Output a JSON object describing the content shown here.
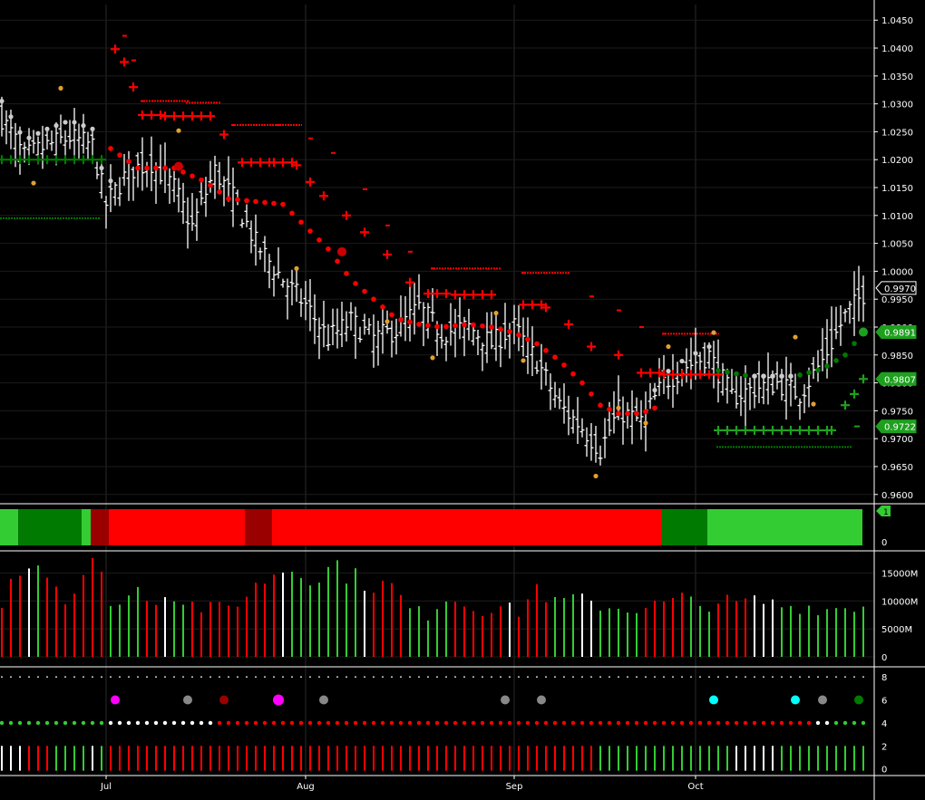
{
  "colors": {
    "background": "#000000",
    "bar": "#ffffff",
    "bull_dark": "#007a00",
    "bull_light": "#33cc33",
    "bear": "#ff0000",
    "bear_dark": "#9b0000",
    "neutral": "#cccccc",
    "orange_dot": "#e0a030",
    "magenta": "#ff00ff",
    "cyan": "#00ffff",
    "grey": "#888888"
  },
  "chart_data": [
    {
      "type": "ohlc",
      "panel": "price",
      "yticks": [
        "1.0450",
        "1.0400",
        "1.0350",
        "1.0300",
        "1.0250",
        "1.0200",
        "1.0150",
        "1.0100",
        "1.0050",
        "1.0000",
        "0.9950",
        "0.9900",
        "0.9850",
        "0.9800",
        "0.9750",
        "0.9700",
        "0.9650",
        "0.9600"
      ],
      "ylim": [
        0.9585,
        1.0478
      ],
      "xticks": [
        "Jul",
        "Aug",
        "Sep",
        "Oct"
      ],
      "last_price": "0.9970",
      "flags": [
        {
          "label": "0.9970",
          "value": 0.997,
          "color": "#ffffff"
        },
        {
          "label": "0.9891",
          "value": 0.9891,
          "color": "#1ea01e"
        },
        {
          "label": "0.9807",
          "value": 0.9807,
          "color": "#1ea01e"
        },
        {
          "label": "0.9722",
          "value": 0.9722,
          "color": "#1ea01e"
        }
      ],
      "close_anchors": [
        [
          0,
          1.0275
        ],
        [
          5,
          1.0205
        ],
        [
          10,
          1.0225
        ],
        [
          15,
          1.024
        ],
        [
          20,
          1.0225
        ],
        [
          23,
          1.012
        ],
        [
          28,
          1.018
        ],
        [
          33,
          1.0195
        ],
        [
          38,
          1.015
        ],
        [
          42,
          1.008
        ],
        [
          47,
          1.018
        ],
        [
          52,
          1.012
        ],
        [
          56,
          1.005
        ],
        [
          62,
          0.9985
        ],
        [
          67,
          0.994
        ],
        [
          72,
          0.988
        ],
        [
          77,
          0.991
        ],
        [
          82,
          0.988
        ],
        [
          87,
          0.9895
        ],
        [
          92,
          0.9935
        ],
        [
          97,
          0.989
        ],
        [
          103,
          0.99
        ],
        [
          108,
          0.987
        ],
        [
          113,
          0.99
        ],
        [
          118,
          0.984
        ],
        [
          123,
          0.976
        ],
        [
          128,
          0.972
        ],
        [
          132,
          0.968
        ],
        [
          136,
          0.975
        ],
        [
          141,
          0.973
        ],
        [
          146,
          0.98
        ],
        [
          151,
          0.983
        ],
        [
          156,
          0.985
        ],
        [
          161,
          0.9775
        ],
        [
          166,
          0.979
        ],
        [
          171,
          0.98
        ],
        [
          176,
          0.978
        ],
        [
          181,
          0.984
        ],
        [
          186,
          0.992
        ],
        [
          191,
          0.997
        ]
      ],
      "red_dots_anchors": [
        [
          24,
          1.022
        ],
        [
          30,
          1.0185
        ],
        [
          38,
          1.0185
        ],
        [
          45,
          1.016
        ],
        [
          50,
          1.013
        ],
        [
          56,
          1.0125
        ],
        [
          62,
          1.012
        ],
        [
          67,
          1.008
        ],
        [
          72,
          1.004
        ],
        [
          77,
          0.9985
        ],
        [
          82,
          0.995
        ],
        [
          87,
          0.9915
        ],
        [
          92,
          0.9905
        ],
        [
          97,
          0.99
        ],
        [
          103,
          0.9905
        ],
        [
          108,
          0.99
        ],
        [
          113,
          0.989
        ],
        [
          118,
          0.987
        ],
        [
          123,
          0.984
        ],
        [
          128,
          0.98
        ],
        [
          132,
          0.976
        ],
        [
          136,
          0.9745
        ],
        [
          141,
          0.9745
        ],
        [
          144,
          0.9755
        ]
      ],
      "red_plus_anchors": [
        [
          25,
          1.0398
        ],
        [
          27,
          1.0375
        ],
        [
          29,
          1.033
        ],
        [
          31,
          1.028
        ],
        [
          36,
          1.0278
        ],
        [
          42,
          1.0278
        ],
        [
          46,
          1.0278
        ],
        [
          49,
          1.0245
        ],
        [
          53,
          1.0195
        ],
        [
          60,
          1.0195
        ],
        [
          65,
          1.019
        ],
        [
          68,
          1.016
        ],
        [
          71,
          1.0135
        ],
        [
          76,
          1.01
        ],
        [
          80,
          1.007
        ],
        [
          85,
          1.003
        ],
        [
          90,
          0.998
        ],
        [
          94,
          0.996
        ],
        [
          100,
          0.9958
        ],
        [
          108,
          0.9958
        ],
        [
          115,
          0.994
        ],
        [
          120,
          0.9935
        ],
        [
          125,
          0.9905
        ],
        [
          130,
          0.9865
        ],
        [
          136,
          0.985
        ],
        [
          141,
          0.9818
        ],
        [
          146,
          0.9815
        ],
        [
          152,
          0.9815
        ],
        [
          158,
          0.9815
        ]
      ],
      "red_dash_anchors": [
        [
          25,
          1.0438
        ],
        [
          27,
          1.0422
        ],
        [
          29,
          1.0378
        ],
        [
          31,
          1.0305
        ],
        [
          41,
          1.0302
        ],
        [
          48,
          1.0302
        ],
        [
          51,
          1.0262
        ],
        [
          61,
          1.0262
        ],
        [
          66,
          1.0262
        ],
        [
          68,
          1.0238
        ],
        [
          73,
          1.0212
        ],
        [
          80,
          1.0147
        ],
        [
          85,
          1.0082
        ],
        [
          90,
          1.0035
        ],
        [
          95,
          1.0005
        ],
        [
          110,
          1.0005
        ],
        [
          115,
          0.9997
        ],
        [
          125,
          0.9997
        ],
        [
          130,
          0.9955
        ],
        [
          136,
          0.993
        ],
        [
          141,
          0.99
        ],
        [
          146,
          0.9888
        ],
        [
          153,
          0.9888
        ],
        [
          158,
          0.9888
        ]
      ],
      "green_plus_anchors": [
        [
          0,
          1.02
        ],
        [
          22,
          1.02
        ],
        [
          158,
          0.9715
        ],
        [
          183,
          0.9715
        ],
        [
          186,
          0.976
        ],
        [
          188,
          0.978
        ],
        [
          190,
          0.9807
        ]
      ],
      "green_dash_lower": [
        [
          0,
          1.0095
        ],
        [
          22,
          1.01
        ],
        [
          158,
          0.9685
        ],
        [
          188,
          0.9685
        ]
      ],
      "green_dots_anchors": [
        [
          158,
          0.9822
        ],
        [
          165,
          0.9812
        ],
        [
          175,
          0.9812
        ],
        [
          181,
          0.9825
        ],
        [
          186,
          0.985
        ],
        [
          190,
          0.9891
        ]
      ]
    },
    {
      "type": "ribbon",
      "panel": "trend",
      "ytick": "0",
      "segments": [
        {
          "from": 0,
          "to": 4,
          "color": "#33cc33"
        },
        {
          "from": 4,
          "to": 18,
          "color": "#007a00"
        },
        {
          "from": 18,
          "to": 20,
          "color": "#33cc33"
        },
        {
          "from": 20,
          "to": 24,
          "color": "#9b0000"
        },
        {
          "from": 24,
          "to": 54,
          "color": "#ff0000"
        },
        {
          "from": 54,
          "to": 60,
          "color": "#9b0000"
        },
        {
          "from": 60,
          "to": 146,
          "color": "#ff0000"
        },
        {
          "from": 146,
          "to": 156,
          "color": "#007a00"
        },
        {
          "from": 156,
          "to": 190,
          "color": "#33cc33"
        }
      ],
      "marker": "1"
    },
    {
      "type": "bar",
      "panel": "volume",
      "yticks": [
        "15000M",
        "10000M",
        "5000M",
        "0"
      ],
      "ylim": [
        0,
        17500
      ],
      "volume_anchors": [
        [
          0,
          10000
        ],
        [
          3,
          16500
        ],
        [
          8,
          17000
        ],
        [
          12,
          13000
        ],
        [
          15,
          10000
        ],
        [
          18,
          15000
        ],
        [
          21,
          16800
        ],
        [
          23,
          11000
        ],
        [
          26,
          9500
        ],
        [
          30,
          12000
        ],
        [
          34,
          10500
        ],
        [
          38,
          11500
        ],
        [
          40,
          10000
        ],
        [
          45,
          8500
        ],
        [
          50,
          9000
        ],
        [
          54,
          11000
        ],
        [
          58,
          14000
        ],
        [
          62,
          16000
        ],
        [
          66,
          15500
        ],
        [
          70,
          14500
        ],
        [
          74,
          16500
        ],
        [
          78,
          14000
        ],
        [
          82,
          13000
        ],
        [
          86,
          12500
        ],
        [
          90,
          8500
        ],
        [
          94,
          7500
        ],
        [
          98,
          11000
        ],
        [
          102,
          9500
        ],
        [
          106,
          8500
        ],
        [
          110,
          9000
        ],
        [
          114,
          8000
        ],
        [
          118,
          12500
        ],
        [
          122,
          9500
        ],
        [
          126,
          10500
        ],
        [
          130,
          9500
        ],
        [
          134,
          9000
        ],
        [
          138,
          8500
        ],
        [
          142,
          9000
        ],
        [
          146,
          9500
        ],
        [
          150,
          10500
        ],
        [
          154,
          9000
        ],
        [
          158,
          10000
        ],
        [
          162,
          9500
        ],
        [
          166,
          10000
        ],
        [
          170,
          9500
        ],
        [
          174,
          9000
        ],
        [
          178,
          9000
        ],
        [
          182,
          8500
        ],
        [
          186,
          9000
        ],
        [
          190,
          9000
        ]
      ],
      "vol_color_runs": [
        [
          0,
          4,
          "r"
        ],
        [
          5,
          6,
          "w"
        ],
        [
          7,
          8,
          "g"
        ],
        [
          9,
          22,
          "r"
        ],
        [
          23,
          23,
          "w"
        ],
        [
          24,
          30,
          "g"
        ],
        [
          31,
          35,
          "r"
        ],
        [
          36,
          36,
          "w"
        ],
        [
          37,
          40,
          "g"
        ],
        [
          41,
          60,
          "r"
        ],
        [
          61,
          62,
          "w"
        ],
        [
          63,
          78,
          "g"
        ],
        [
          79,
          80,
          "w"
        ],
        [
          81,
          89,
          "r"
        ],
        [
          90,
          99,
          "g"
        ],
        [
          100,
          110,
          "r"
        ],
        [
          111,
          112,
          "w"
        ],
        [
          113,
          120,
          "r"
        ],
        [
          121,
          126,
          "g"
        ],
        [
          127,
          130,
          "w"
        ],
        [
          131,
          140,
          "g"
        ],
        [
          141,
          150,
          "r"
        ],
        [
          151,
          157,
          "g"
        ],
        [
          158,
          165,
          "r"
        ],
        [
          166,
          171,
          "w"
        ],
        [
          172,
          190,
          "g"
        ]
      ]
    },
    {
      "type": "dots",
      "panel": "signals",
      "yticks": [
        "8",
        "6",
        "4",
        "2",
        "0"
      ],
      "ylim": [
        -0.5,
        8.8
      ],
      "signal_markers": [
        {
          "i": 25,
          "level": 6,
          "color": "#ff00ff",
          "size": 5
        },
        {
          "i": 41,
          "level": 6,
          "color": "#888888",
          "size": 5
        },
        {
          "i": 49,
          "level": 6,
          "color": "#9b0000",
          "size": 5
        },
        {
          "i": 61,
          "level": 6,
          "color": "#ff00ff",
          "size": 6
        },
        {
          "i": 71,
          "level": 6,
          "color": "#888888",
          "size": 5
        },
        {
          "i": 111,
          "level": 6,
          "color": "#888888",
          "size": 5
        },
        {
          "i": 119,
          "level": 6,
          "color": "#888888",
          "size": 5
        },
        {
          "i": 157,
          "level": 6,
          "color": "#00ffff",
          "size": 5
        },
        {
          "i": 175,
          "level": 6,
          "color": "#00ffff",
          "size": 5
        },
        {
          "i": 181,
          "level": 6,
          "color": "#888888",
          "size": 5
        },
        {
          "i": 189,
          "level": 6,
          "color": "#007a00",
          "size": 5
        }
      ],
      "dot_color_runs": [
        [
          0,
          23,
          "#33cc33"
        ],
        [
          24,
          47,
          "#ffffff"
        ],
        [
          48,
          179,
          "#ff0000"
        ],
        [
          180,
          183,
          "#ffffff"
        ],
        [
          184,
          190,
          "#33cc33"
        ]
      ],
      "bar_color_runs": [
        [
          0,
          4,
          "#ffffff"
        ],
        [
          5,
          10,
          "#ff0000"
        ],
        [
          11,
          18,
          "#33cc33"
        ],
        [
          19,
          20,
          "#ffffff"
        ],
        [
          21,
          22,
          "#33cc33"
        ],
        [
          23,
          130,
          "#ff0000"
        ],
        [
          131,
          160,
          "#33cc33"
        ],
        [
          161,
          170,
          "#ffffff"
        ],
        [
          171,
          190,
          "#33cc33"
        ]
      ]
    }
  ]
}
